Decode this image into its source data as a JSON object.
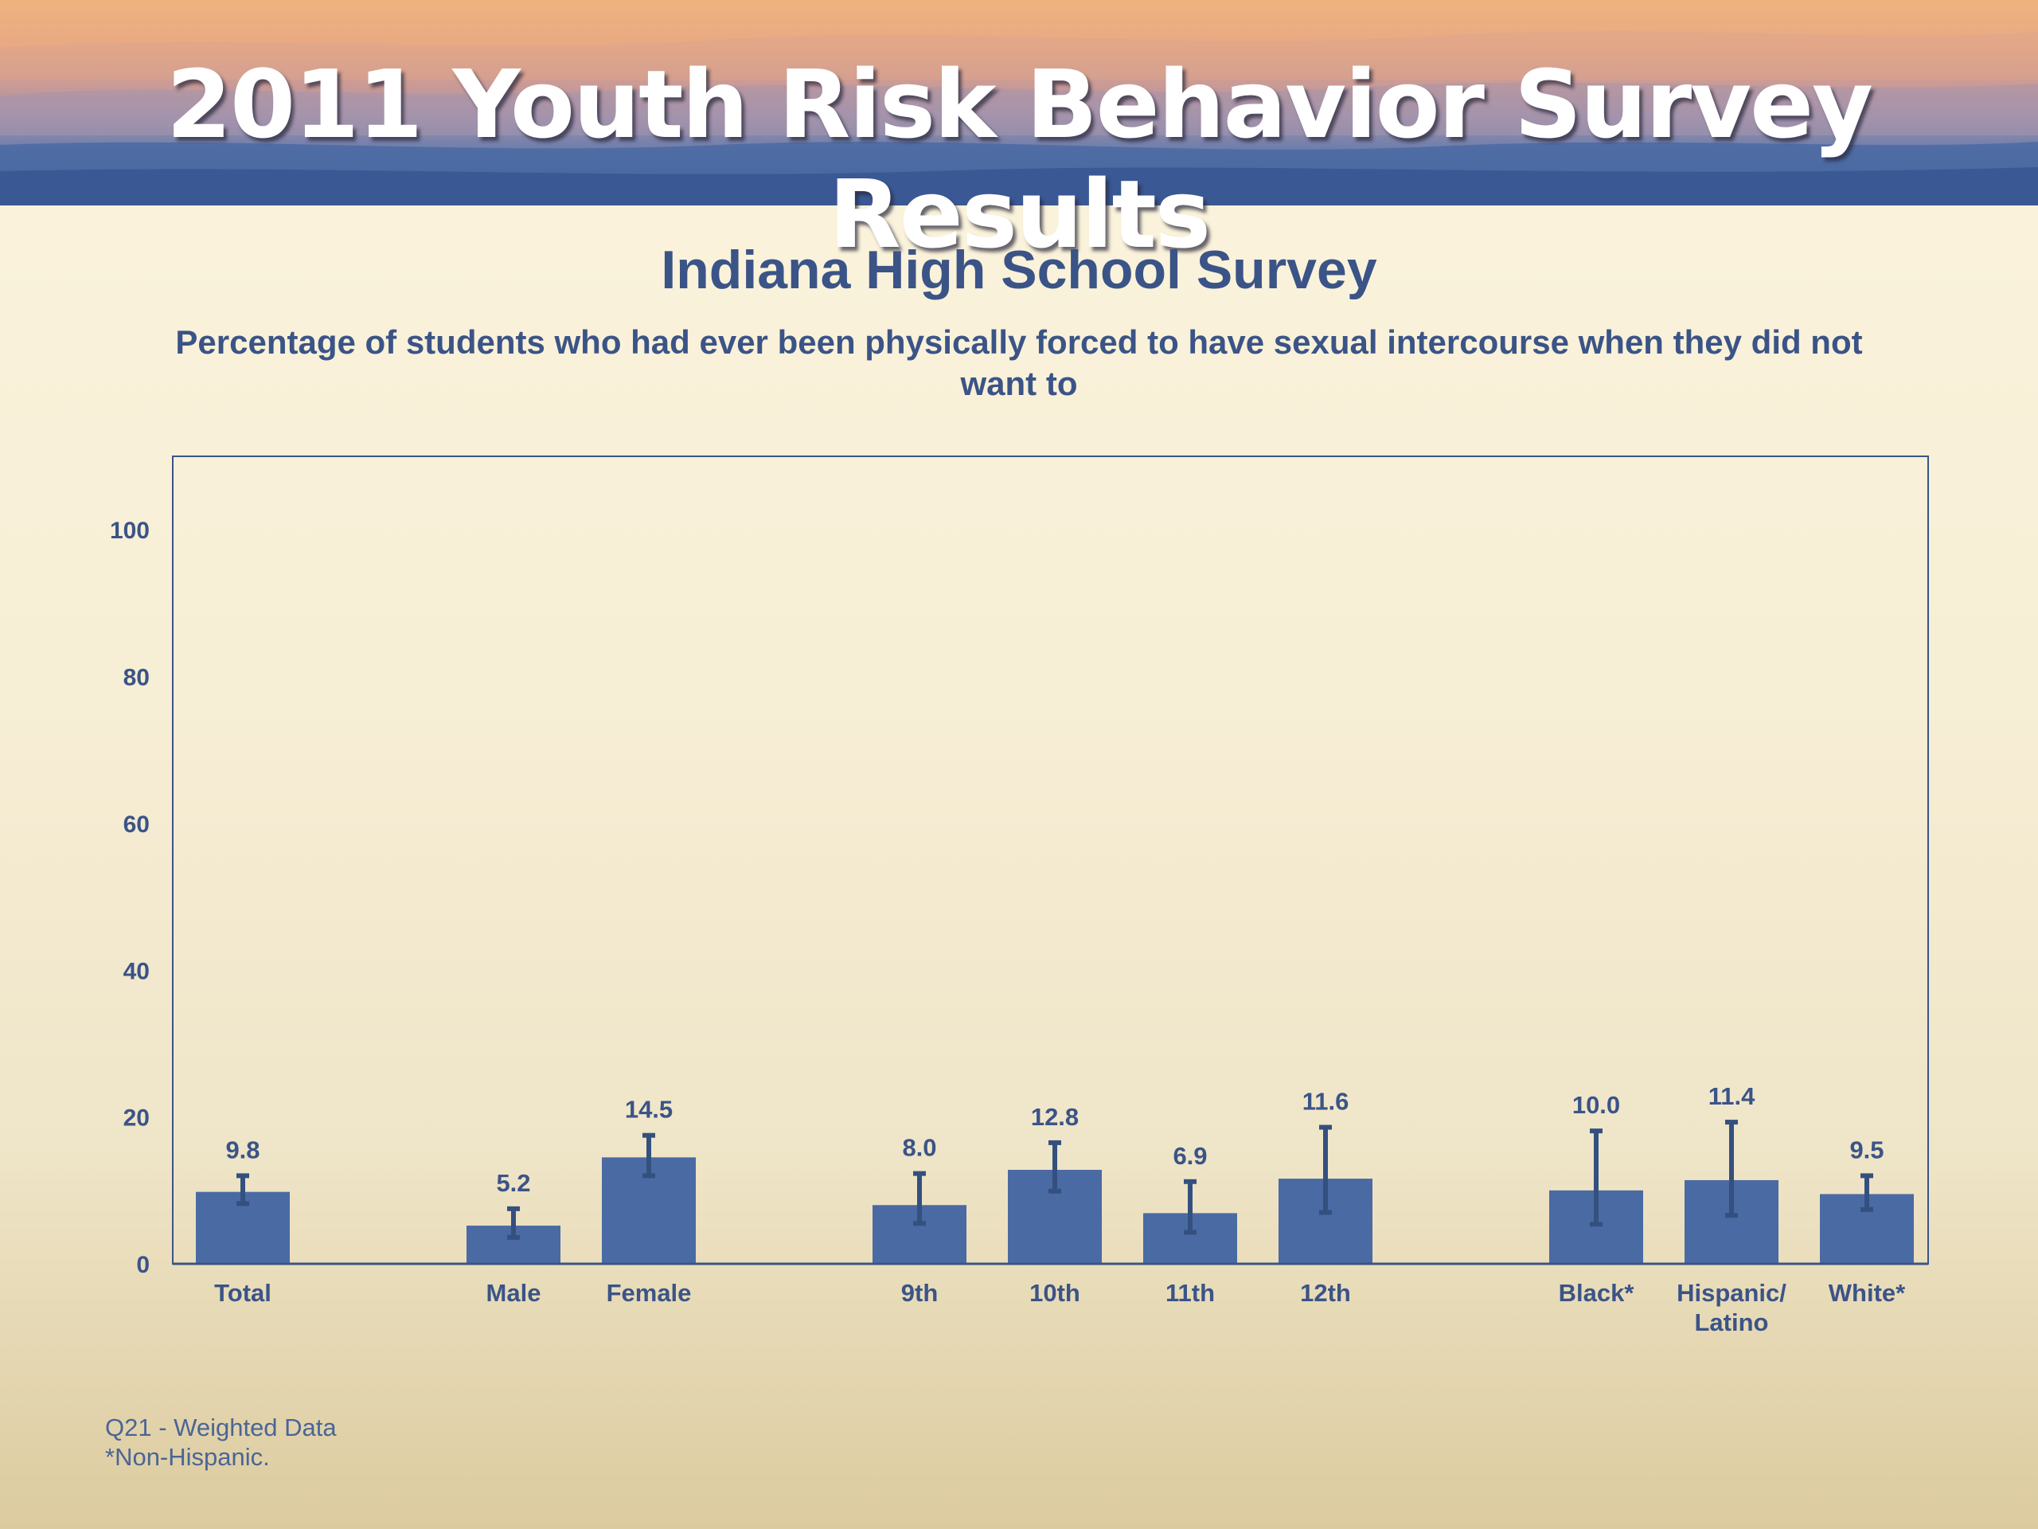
{
  "banner": {
    "title": "2011 Youth Risk Behavior Survey Results"
  },
  "chart_data": {
    "type": "bar",
    "title": "Indiana High School Survey",
    "subtitle": "Percentage of students who had ever been physically forced to have sexual intercourse when they did not want to",
    "ylim": [
      0,
      110
    ],
    "yticks": [
      0,
      20,
      40,
      60,
      80,
      100
    ],
    "grid": false,
    "bar_color": "#4a6aa4",
    "text_color": "#3b5487",
    "groups": [
      {
        "categories": [
          "Total"
        ]
      },
      {
        "categories": [
          "Male",
          "Female"
        ]
      },
      {
        "categories": [
          "9th",
          "10th",
          "11th",
          "12th"
        ]
      },
      {
        "categories": [
          "Black*",
          "Hispanic/\nLatino",
          "White*"
        ]
      }
    ],
    "categories": [
      "Total",
      "Male",
      "Female",
      "9th",
      "10th",
      "11th",
      "12th",
      "Black*",
      "Hispanic/\nLatino",
      "White*"
    ],
    "values": [
      9.8,
      5.2,
      14.5,
      8.0,
      12.8,
      6.9,
      11.6,
      10.0,
      11.4,
      9.5
    ],
    "value_labels": [
      "9.8",
      "5.2",
      "14.5",
      "8.0",
      "12.8",
      "6.9",
      "11.6",
      "10.0",
      "11.4",
      "9.5"
    ],
    "ci_lower": [
      8.2,
      3.6,
      12.0,
      5.5,
      9.9,
      4.3,
      7.0,
      5.4,
      6.6,
      7.4
    ],
    "ci_upper": [
      12.0,
      7.5,
      17.5,
      12.3,
      16.5,
      11.2,
      18.6,
      18.1,
      19.3,
      12.0
    ]
  },
  "footnotes": [
    "Q21 - Weighted Data",
    "*Non-Hispanic."
  ]
}
